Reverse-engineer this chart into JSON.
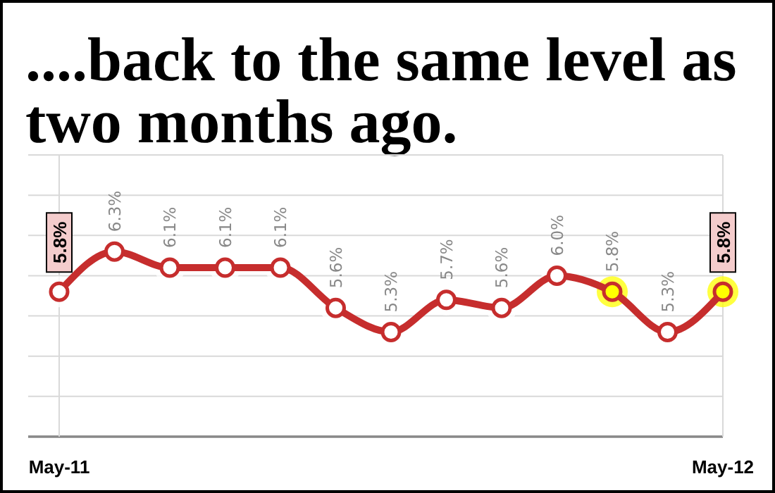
{
  "chart_data": {
    "type": "line",
    "title": "....back to the same level as two months ago.",
    "categories": [
      "May-11",
      null,
      null,
      null,
      null,
      null,
      null,
      null,
      null,
      null,
      null,
      null,
      "May-12"
    ],
    "series": [
      {
        "color": "#c62d2d",
        "values": [
          5.8,
          6.3,
          6.1,
          6.1,
          6.1,
          5.6,
          5.3,
          5.7,
          5.6,
          6.0,
          5.8,
          5.3,
          5.8
        ],
        "colors": [
          "#ffffff",
          "#ffffff",
          "#ffffff",
          "#ffffff",
          "#ffffff",
          "#ffffff",
          "#ffffff",
          "#ffffff",
          "#ffffff",
          "#ffffff",
          "#ffff00",
          "#ffffff",
          "#ffff00"
        ],
        "value_labels": [
          "5.8%",
          "6.3%",
          "6.1%",
          "6.1%",
          "6.1%",
          "5.6%",
          "5.3%",
          "5.7%",
          "5.6%",
          "6.0%",
          "5.8%",
          "5.3%",
          "5.8%"
        ]
      }
    ],
    "ylim": [
      4,
      7.5
    ],
    "yticks": [
      {
        "value": 4,
        "label": null
      },
      {
        "value": 4.5,
        "label": null
      },
      {
        "value": 5,
        "label": null
      },
      {
        "value": 5.5,
        "label": null
      },
      {
        "value": 6,
        "label": null
      },
      {
        "value": 6.5,
        "label": null
      },
      {
        "value": 7,
        "label": null
      },
      {
        "value": 7.5,
        "label": null
      }
    ],
    "tick_labels": "x",
    "grid": true,
    "marker": "circle",
    "line_style": "solid"
  }
}
